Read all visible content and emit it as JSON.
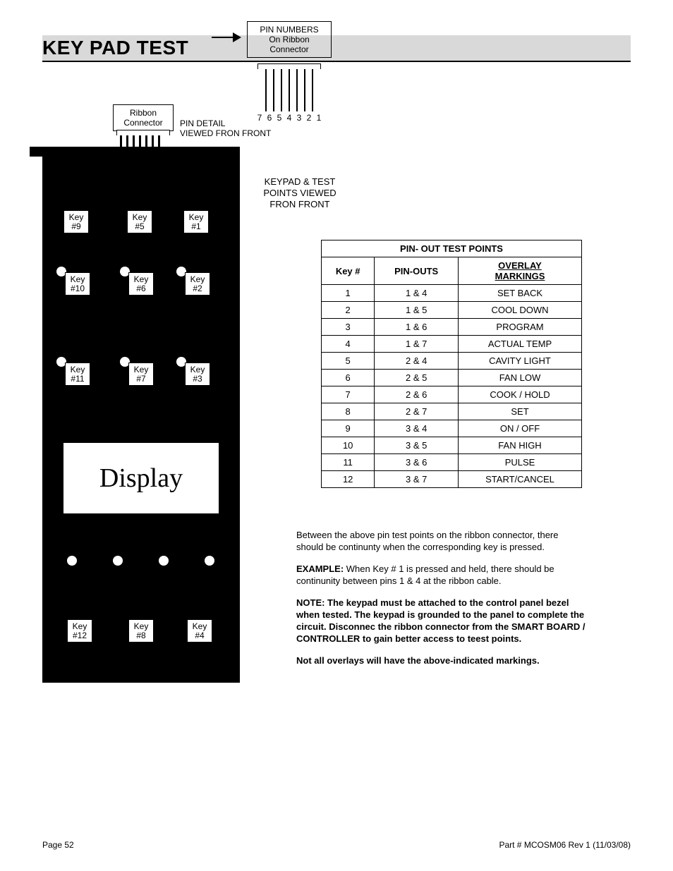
{
  "title": "KEY PAD TEST",
  "ribbon_label_line1": "Ribbon",
  "ribbon_label_line2": "Connector",
  "pin_detail_line1": "PIN DETAIL",
  "pin_detail_line2": "VIEWED FRON FRONT",
  "pin_numbers_line1": "PIN NUMBERS",
  "pin_numbers_line2": "On Ribbon",
  "pin_numbers_line3": "Connector",
  "pin_nums": [
    "7",
    "6",
    "5",
    "4",
    "3",
    "2",
    "1"
  ],
  "side_label_line1": "KEYPAD & TEST",
  "side_label_line2": "POINTS VIEWED",
  "side_label_line3": "FRON FRONT",
  "display_text": "Display",
  "keys": {
    "k1": "Key\n#1",
    "k2": "Key\n#2",
    "k3": "Key\n#3",
    "k4": "Key\n#4",
    "k5": "Key\n#5",
    "k6": "Key\n#6",
    "k7": "Key\n#7",
    "k8": "Key\n#8",
    "k9": "Key\n#9",
    "k10": "Key\n#10",
    "k11": "Key\n#11",
    "k12": "Key\n#12"
  },
  "table": {
    "title": "PIN- OUT TEST POINTS",
    "col1": "Key #",
    "col2": "PIN-OUTS",
    "col3_line1": "OVERLAY",
    "col3_line2": "MARKINGS",
    "rows": [
      {
        "k": "1",
        "p": "1 & 4",
        "m": "SET BACK"
      },
      {
        "k": "2",
        "p": "1 & 5",
        "m": "COOL DOWN"
      },
      {
        "k": "3",
        "p": "1 & 6",
        "m": "PROGRAM"
      },
      {
        "k": "4",
        "p": "1 & 7",
        "m": "ACTUAL TEMP"
      },
      {
        "k": "5",
        "p": "2 & 4",
        "m": "CAVITY LIGHT"
      },
      {
        "k": "6",
        "p": "2 & 5",
        "m": "FAN LOW"
      },
      {
        "k": "7",
        "p": "2 & 6",
        "m": "COOK / HOLD"
      },
      {
        "k": "8",
        "p": "2 & 7",
        "m": "SET"
      },
      {
        "k": "9",
        "p": "3 & 4",
        "m": "ON / OFF"
      },
      {
        "k": "10",
        "p": "3 & 5",
        "m": "FAN HIGH"
      },
      {
        "k": "11",
        "p": "3 & 6",
        "m": "PULSE"
      },
      {
        "k": "12",
        "p": "3 & 7",
        "m": "START/CANCEL"
      }
    ]
  },
  "para1": "Between the above pin test points on the ribbon connector, there should be continunty when the corresponding key is pressed.",
  "para2_bold": "EXAMPLE:",
  "para2_rest": " When Key # 1 is pressed and held, there should be continunity between pins 1 & 4 at the ribbon cable.",
  "para3": "NOTE: The keypad must be attached to the control panel bezel when tested. The keypad is grounded to the panel to complete the circuit. Disconnec the ribbon connector from the SMART BOARD / CONTROLLER to gain better access to teest points.",
  "para4": "Not all overlays will have the above-indicated markings.",
  "footer_left": "Page 52",
  "footer_right": "Part # MCOSM06 Rev 1 (11/03/08)",
  "colors": {
    "title_bg": "#d9d9d9",
    "keypad_bg": "#000000",
    "text": "#000000"
  }
}
